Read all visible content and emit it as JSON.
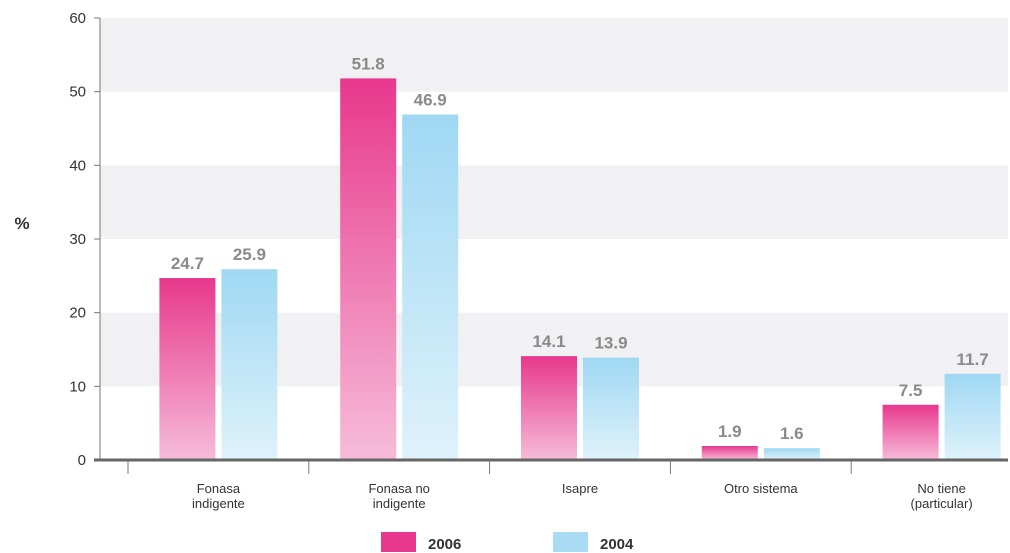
{
  "chart_data": {
    "type": "bar",
    "title": "",
    "xlabel": "",
    "ylabel": "%",
    "ylim": [
      0,
      60
    ],
    "yticks": [
      0,
      10,
      20,
      30,
      40,
      50,
      60
    ],
    "grid": "horizontal bands",
    "legend_position": "bottom",
    "categories": [
      [
        "Fonasa",
        "indigente"
      ],
      [
        "Fonasa no",
        "indigente"
      ],
      [
        "Isapre"
      ],
      [
        "Otro sistema"
      ],
      [
        "No tiene",
        "(particular)"
      ]
    ],
    "series": [
      {
        "name": "2006",
        "color": "#e8388d",
        "values": [
          24.7,
          51.8,
          14.1,
          1.9,
          7.5
        ],
        "labels": [
          "24.7",
          "51.8",
          "14.1",
          "1.9",
          "7.5"
        ]
      },
      {
        "name": "2004",
        "color": "#a9dcf4",
        "values": [
          25.9,
          46.9,
          13.9,
          1.6,
          11.7
        ],
        "labels": [
          "25.9",
          "46.9",
          "13.9",
          "1.6",
          "11.7"
        ]
      }
    ]
  }
}
